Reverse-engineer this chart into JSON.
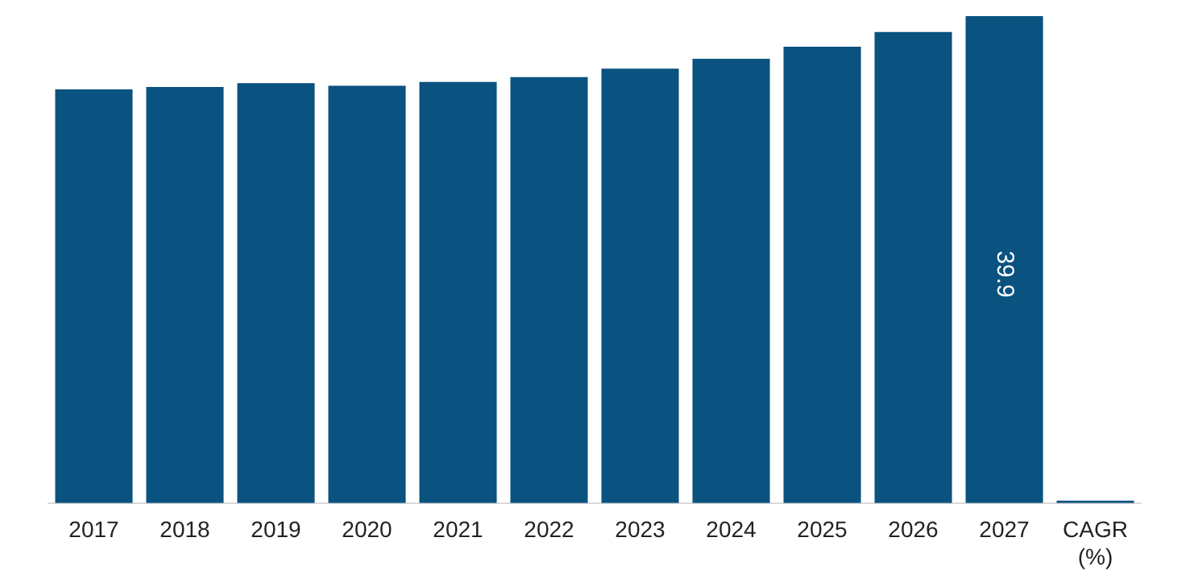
{
  "chart_data": {
    "type": "bar",
    "categories": [
      "2017",
      "2018",
      "2019",
      "2020",
      "2021",
      "2022",
      "2023",
      "2024",
      "2025",
      "2026",
      "2027",
      "CAGR (%)"
    ],
    "values": [
      33.9,
      34.1,
      34.4,
      34.2,
      34.5,
      34.9,
      35.6,
      36.4,
      37.4,
      38.6,
      39.9,
      0.2
    ],
    "color": "#0a527f",
    "value_labels": [
      null,
      null,
      null,
      null,
      null,
      null,
      null,
      null,
      null,
      null,
      "39.9",
      null
    ],
    "grid": false,
    "legend": false,
    "tick_labels": "x"
  }
}
